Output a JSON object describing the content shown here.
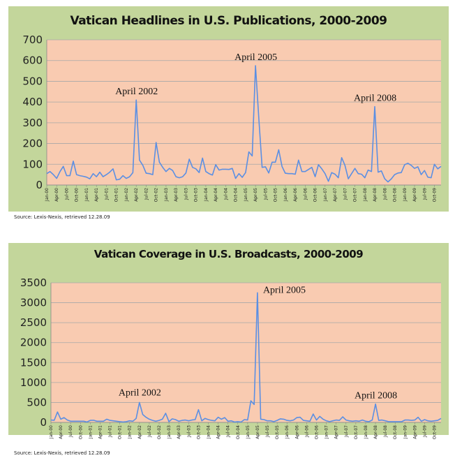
{
  "charts_meta": {
    "colors": {
      "panel": "#c3d69b",
      "plot": "#f9cbb1",
      "line": "#5b8fe3",
      "grid": "#a8a8a8"
    }
  },
  "chart_data": [
    {
      "type": "line",
      "title": "Vatican Headlines in U.S. Publications, 2000-2009",
      "source": "Source: Lexis-Nexis, retrieved 12.28.09",
      "xlabel": "",
      "ylabel": "",
      "ylim": [
        0,
        700
      ],
      "yticks": [
        "0",
        "100",
        "200",
        "300",
        "400",
        "500",
        "600",
        "700"
      ],
      "grid": true,
      "xtick_labels": [
        "Jan-00",
        "Apr-00",
        "Jul-00",
        "Oct-00",
        "Jan-01",
        "Apr-01",
        "Jul-01",
        "Oct-01",
        "Jan-02",
        "Apr-02",
        "Jul-02",
        "Oct-02",
        "Jan-03",
        "Apr-03",
        "Jul-03",
        "Oct-03",
        "Jan-04",
        "Apr-04",
        "Jul-04",
        "Oct-04",
        "Jan-05",
        "Apr-05",
        "Jul-05",
        "Oct-05",
        "Jan-06",
        "Apr-06",
        "Jul-06",
        "Oct-06",
        "Jan-07",
        "Apr-07",
        "Jul-07",
        "Oct-07",
        "Jan-08",
        "Apr-08",
        "Jul-08",
        "Oct-08",
        "Jan-09",
        "Apr-09",
        "Jul-09",
        "Oct-09"
      ],
      "values": [
        55,
        65,
        50,
        32,
        65,
        90,
        45,
        45,
        115,
        50,
        45,
        42,
        38,
        30,
        55,
        40,
        62,
        40,
        50,
        62,
        78,
        25,
        28,
        45,
        32,
        40,
        60,
        410,
        120,
        95,
        57,
        55,
        50,
        205,
        110,
        85,
        65,
        80,
        70,
        40,
        35,
        40,
        58,
        125,
        85,
        78,
        60,
        130,
        65,
        55,
        48,
        98,
        72,
        76,
        76,
        75,
        80,
        32,
        55,
        37,
        60,
        160,
        140,
        575,
        320,
        85,
        88,
        58,
        110,
        110,
        170,
        90,
        57,
        55,
        55,
        52,
        120,
        65,
        65,
        75,
        85,
        40,
        98,
        78,
        55,
        18,
        60,
        52,
        35,
        132,
        95,
        30,
        55,
        80,
        55,
        52,
        35,
        72,
        65,
        378,
        62,
        68,
        30,
        15,
        30,
        50,
        58,
        60,
        98,
        105,
        95,
        80,
        88,
        50,
        70,
        38,
        35,
        100,
        78,
        90
      ],
      "annotations": [
        {
          "text": "April 2002",
          "month_index": 27,
          "value": 410
        },
        {
          "text": "April 2005",
          "month_index": 63,
          "value": 575
        },
        {
          "text": "April 2008",
          "month_index": 99,
          "value": 378
        }
      ]
    },
    {
      "type": "line",
      "title": "Vatican Coverage in U.S. Broadcasts, 2000-2009",
      "source": "Source: Lexis-Nexis, retrieved 12.28.09",
      "xlabel": "",
      "ylabel": "",
      "ylim": [
        0,
        3500
      ],
      "yticks": [
        "0",
        "500",
        "1000",
        "1500",
        "2000",
        "2500",
        "3000",
        "3500"
      ],
      "grid": true,
      "xtick_labels": [
        "Jan-00",
        "Apr-00",
        "Jul-00",
        "Oct-00",
        "Jan-01",
        "Apr-01",
        "Jul-01",
        "Oct-01",
        "Jan-02",
        "Apr-02",
        "Jul-02",
        "Oct-02",
        "Jan-03",
        "Apr-03",
        "Jul-03",
        "Oct-03",
        "Jan-04",
        "Apr-04",
        "Jul-04",
        "Oct-04",
        "Jan-05",
        "Apr-05",
        "Jul-05",
        "Oct-05",
        "Jan-06",
        "Apr-06",
        "Jul-06",
        "Oct-06",
        "Jan-07",
        "Apr-07",
        "Jul-07",
        "Oct-07",
        "Jan-08",
        "Apr-08",
        "Jul-08",
        "Oct-08",
        "Jan-09",
        "Apr-09",
        "Jul-09",
        "Oct-09"
      ],
      "values": [
        60,
        55,
        260,
        80,
        120,
        60,
        30,
        30,
        30,
        30,
        30,
        10,
        50,
        55,
        30,
        30,
        30,
        80,
        50,
        40,
        30,
        20,
        10,
        20,
        40,
        30,
        100,
        500,
        200,
        130,
        80,
        50,
        30,
        50,
        80,
        230,
        20,
        90,
        70,
        30,
        50,
        60,
        40,
        60,
        70,
        320,
        40,
        100,
        70,
        50,
        40,
        130,
        80,
        120,
        30,
        40,
        10,
        20,
        10,
        70,
        60,
        540,
        450,
        3250,
        80,
        70,
        40,
        40,
        20,
        50,
        90,
        80,
        50,
        40,
        60,
        120,
        130,
        50,
        40,
        30,
        210,
        60,
        150,
        80,
        40,
        20,
        40,
        60,
        50,
        140,
        60,
        40,
        30,
        40,
        30,
        60,
        30,
        20,
        60,
        460,
        50,
        60,
        40,
        20,
        20,
        20,
        20,
        20,
        60,
        60,
        50,
        60,
        130,
        30,
        70,
        40,
        30,
        40,
        50,
        100
      ],
      "annotations": [
        {
          "text": "April 2002",
          "month_index": 27,
          "value": 500
        },
        {
          "text": "April 2005",
          "month_index": 63,
          "value": 3250
        },
        {
          "text": "April 2008",
          "month_index": 99,
          "value": 460
        }
      ]
    }
  ]
}
